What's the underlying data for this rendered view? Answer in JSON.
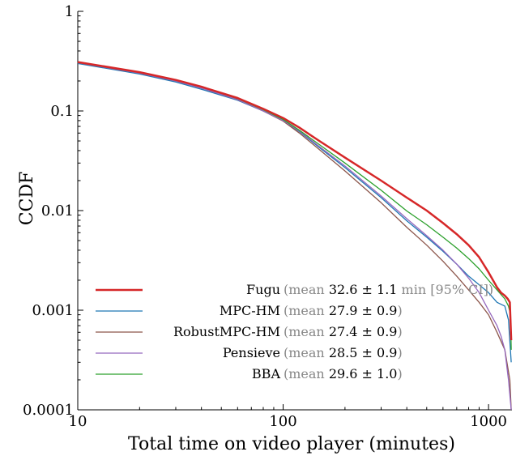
{
  "chart_data": {
    "type": "line",
    "title": "",
    "xlabel": "Total time on video player (minutes)",
    "ylabel": "CCDF",
    "x_scale": "log",
    "y_scale": "log",
    "xlim": [
      10,
      1300
    ],
    "ylim": [
      0.0001,
      1
    ],
    "grid": false,
    "legend_position": "bottom-left",
    "x_ticks": [
      {
        "value": 10,
        "label": "10"
      },
      {
        "value": 100,
        "label": "100"
      },
      {
        "value": 1000,
        "label": "1000"
      }
    ],
    "y_ticks": [
      {
        "value": 1,
        "label": "1"
      },
      {
        "value": 0.1,
        "label": "0.1"
      },
      {
        "value": 0.01,
        "label": "0.01"
      },
      {
        "value": 0.001,
        "label": "0.001"
      },
      {
        "value": 0.0001,
        "label": "0.0001"
      }
    ],
    "series": [
      {
        "name": "Fugu",
        "legend_note_prefix": "(mean ",
        "legend_mean": "32.6 ± 1.1",
        "legend_note_suffix": " min [95% CI])",
        "color": "#d62728",
        "stroke_width": 2.5,
        "x": [
          10,
          20,
          30,
          40,
          60,
          80,
          100,
          120,
          150,
          200,
          300,
          400,
          500,
          600,
          700,
          800,
          900,
          1000,
          1100,
          1150,
          1200,
          1240,
          1270,
          1290
        ],
        "y": [
          0.31,
          0.245,
          0.205,
          0.175,
          0.135,
          0.105,
          0.085,
          0.068,
          0.05,
          0.034,
          0.02,
          0.0135,
          0.01,
          0.0075,
          0.0058,
          0.0045,
          0.0034,
          0.0024,
          0.0017,
          0.0015,
          0.0014,
          0.0013,
          0.0012,
          0.0005
        ]
      },
      {
        "name": "MPC-HM",
        "legend_note_prefix": "(mean ",
        "legend_mean": "27.9 ± 0.9",
        "legend_note_suffix": ")",
        "color": "#1f77b4",
        "stroke_width": 1.3,
        "x": [
          10,
          20,
          30,
          40,
          60,
          80,
          100,
          120,
          150,
          200,
          300,
          400,
          500,
          600,
          700,
          800,
          900,
          1000,
          1100,
          1200,
          1250,
          1290
        ],
        "y": [
          0.3,
          0.235,
          0.195,
          0.165,
          0.128,
          0.1,
          0.08,
          0.062,
          0.043,
          0.027,
          0.0135,
          0.0079,
          0.0054,
          0.0039,
          0.0029,
          0.0022,
          0.0018,
          0.0015,
          0.0012,
          0.0011,
          0.0008,
          0.0003
        ]
      },
      {
        "name": "RobustMPC-HM",
        "legend_note_prefix": "(mean ",
        "legend_mean": "27.4 ± 0.9",
        "legend_note_suffix": ")",
        "color": "#8c564b",
        "stroke_width": 1.3,
        "x": [
          10,
          20,
          30,
          40,
          60,
          80,
          100,
          120,
          150,
          200,
          300,
          400,
          500,
          600,
          700,
          800,
          900,
          1000,
          1100,
          1200,
          1270,
          1290
        ],
        "y": [
          0.305,
          0.24,
          0.2,
          0.17,
          0.13,
          0.1,
          0.079,
          0.06,
          0.041,
          0.025,
          0.012,
          0.0068,
          0.0045,
          0.0031,
          0.0022,
          0.0016,
          0.0012,
          0.0009,
          0.0006,
          0.0004,
          0.0002,
          0.0001
        ]
      },
      {
        "name": "Pensieve",
        "legend_note_prefix": "(mean ",
        "legend_mean": "28.5 ± 0.9",
        "legend_note_suffix": ")",
        "color": "#9467bd",
        "stroke_width": 1.3,
        "x": [
          10,
          20,
          30,
          40,
          60,
          80,
          100,
          120,
          150,
          200,
          300,
          400,
          500,
          600,
          700,
          800,
          900,
          1000,
          1100,
          1150,
          1200,
          1250,
          1290
        ],
        "y": [
          0.305,
          0.24,
          0.2,
          0.17,
          0.13,
          0.1,
          0.08,
          0.063,
          0.044,
          0.028,
          0.014,
          0.0083,
          0.0056,
          0.004,
          0.0029,
          0.0021,
          0.0015,
          0.001,
          0.0007,
          0.00055,
          0.0004,
          0.0002,
          0.0001
        ]
      },
      {
        "name": "BBA",
        "legend_note_prefix": "(mean ",
        "legend_mean": "29.6 ± 1.0",
        "legend_note_suffix": ")",
        "color": "#2ca02c",
        "stroke_width": 1.3,
        "x": [
          10,
          20,
          30,
          40,
          60,
          80,
          100,
          120,
          150,
          200,
          300,
          400,
          500,
          600,
          700,
          800,
          900,
          1000,
          1100,
          1200,
          1250,
          1280,
          1290
        ],
        "y": [
          0.31,
          0.245,
          0.205,
          0.174,
          0.133,
          0.103,
          0.082,
          0.064,
          0.046,
          0.03,
          0.016,
          0.0099,
          0.0072,
          0.0054,
          0.0042,
          0.0033,
          0.0026,
          0.002,
          0.0016,
          0.0013,
          0.0011,
          0.0009,
          0.0004
        ]
      }
    ]
  }
}
